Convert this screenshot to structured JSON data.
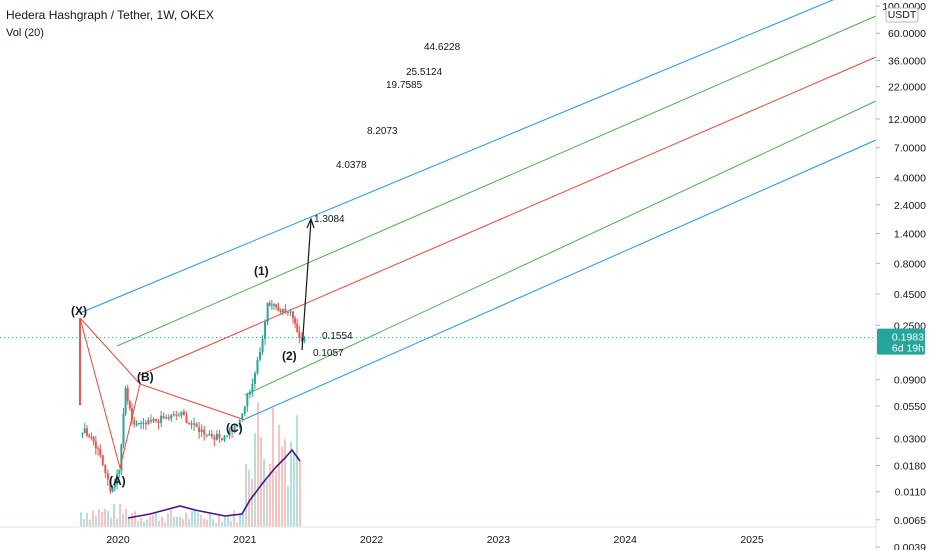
{
  "header": {
    "title": "Hedera Hashgraph / Tether, 1W, OKEX",
    "volume_label": "Vol (20)"
  },
  "price_axis": {
    "currency": "USDT",
    "labels": [
      "100.0000",
      "60.0000",
      "36.0000",
      "22.0000",
      "12.0000",
      "7.0000",
      "4.0000",
      "2.4000",
      "1.4000",
      "0.8000",
      "0.4500",
      "0.2500",
      "0.0900",
      "0.0550",
      "0.0300",
      "0.0180",
      "0.0110",
      "0.0065",
      "0.0039"
    ]
  },
  "current_price": {
    "value": "0.1983",
    "countdown": "6d 19h",
    "color": "#26a69a"
  },
  "time_axis": {
    "labels": [
      "2020",
      "2021",
      "2022",
      "2023",
      "2024",
      "2025"
    ]
  },
  "target_levels": [
    "44.6228",
    "25.5124",
    "19.7585",
    "8.2073",
    "4.0378",
    "1.3084",
    "0.1554",
    "0.1057"
  ],
  "wave_labels": [
    "(X)",
    "(A)",
    "(B)",
    "(C)",
    "(1)",
    "(2)"
  ],
  "colors": {
    "up": "#26a69a",
    "down": "#ef5350",
    "fork_outer": "#2196f3",
    "fork_inner": "#4caf50",
    "fork_median": "#f44336",
    "volume_ma": "#4a148c",
    "wave_lines": "#f44336"
  },
  "chart_data": {
    "type": "candlestick",
    "scale": "log",
    "interval": "1W",
    "symbol": "HBAR/USDT",
    "exchange": "OKEX",
    "series": [
      {
        "name": "Hedera Hashgraph / Tether",
        "t": [
          2019.72,
          2019.79,
          2019.86,
          2019.94,
          2020.01,
          2020.06,
          2020.11,
          2020.2,
          2020.3,
          2020.4,
          2020.5,
          2020.6,
          2020.7,
          2020.8,
          2020.88,
          2020.96,
          2021.02,
          2021.06,
          2021.12,
          2021.18,
          2021.23,
          2021.3,
          2021.38,
          2021.43,
          2021.47
        ],
        "close": [
          0.035,
          0.032,
          0.022,
          0.011,
          0.016,
          0.075,
          0.04,
          0.038,
          0.042,
          0.044,
          0.047,
          0.037,
          0.033,
          0.03,
          0.034,
          0.04,
          0.065,
          0.085,
          0.15,
          0.38,
          0.37,
          0.33,
          0.3,
          0.2,
          0.198
        ]
      }
    ],
    "current_price": 0.1983,
    "x_range": [
      2019.4,
      2026.0
    ],
    "y_range": [
      0.0036,
      110
    ]
  }
}
